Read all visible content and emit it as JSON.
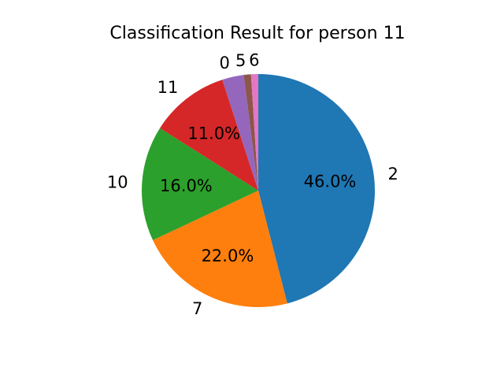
{
  "chart_data": {
    "type": "pie",
    "title": "Classification Result for person 11",
    "start_angle_deg": 90,
    "direction": "clockwise",
    "slices": [
      {
        "label": "2",
        "value": 46.0,
        "pct_label": "46.0%",
        "color": "#1f77b4"
      },
      {
        "label": "7",
        "value": 22.0,
        "pct_label": "22.0%",
        "color": "#ff7f0e"
      },
      {
        "label": "10",
        "value": 16.0,
        "pct_label": "16.0%",
        "color": "#2ca02c"
      },
      {
        "label": "11",
        "value": 11.0,
        "pct_label": "11.0%",
        "color": "#d62728"
      },
      {
        "label": "0",
        "value": 3.0,
        "pct_label": "",
        "color": "#9467bd"
      },
      {
        "label": "5",
        "value": 1.0,
        "pct_label": "",
        "color": "#8c564b"
      },
      {
        "label": "6",
        "value": 1.0,
        "pct_label": "",
        "color": "#e377c2"
      }
    ]
  }
}
